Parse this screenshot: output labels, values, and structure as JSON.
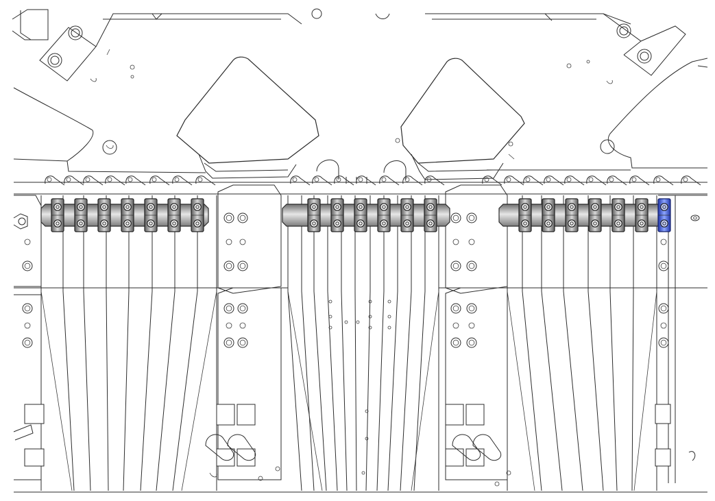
{
  "colors": {
    "background": "#ffffff",
    "line": "#2b2b2b",
    "bar_fill": "#8e8e8e",
    "bar_highlight": "#e6e6e6",
    "clamp_fill": "#9a9a9a",
    "selected_clamp_fill": "#2f4fd0",
    "selected_clamp_highlight": "#8ea6ff"
  },
  "assembly": {
    "bars": [
      {
        "name": "left",
        "clamp_count": 7
      },
      {
        "name": "center",
        "clamp_count": 6
      },
      {
        "name": "right",
        "clamp_count": 7
      }
    ],
    "selected_clamp": {
      "bar": "right",
      "index": 7,
      "highlight": "blue"
    }
  }
}
